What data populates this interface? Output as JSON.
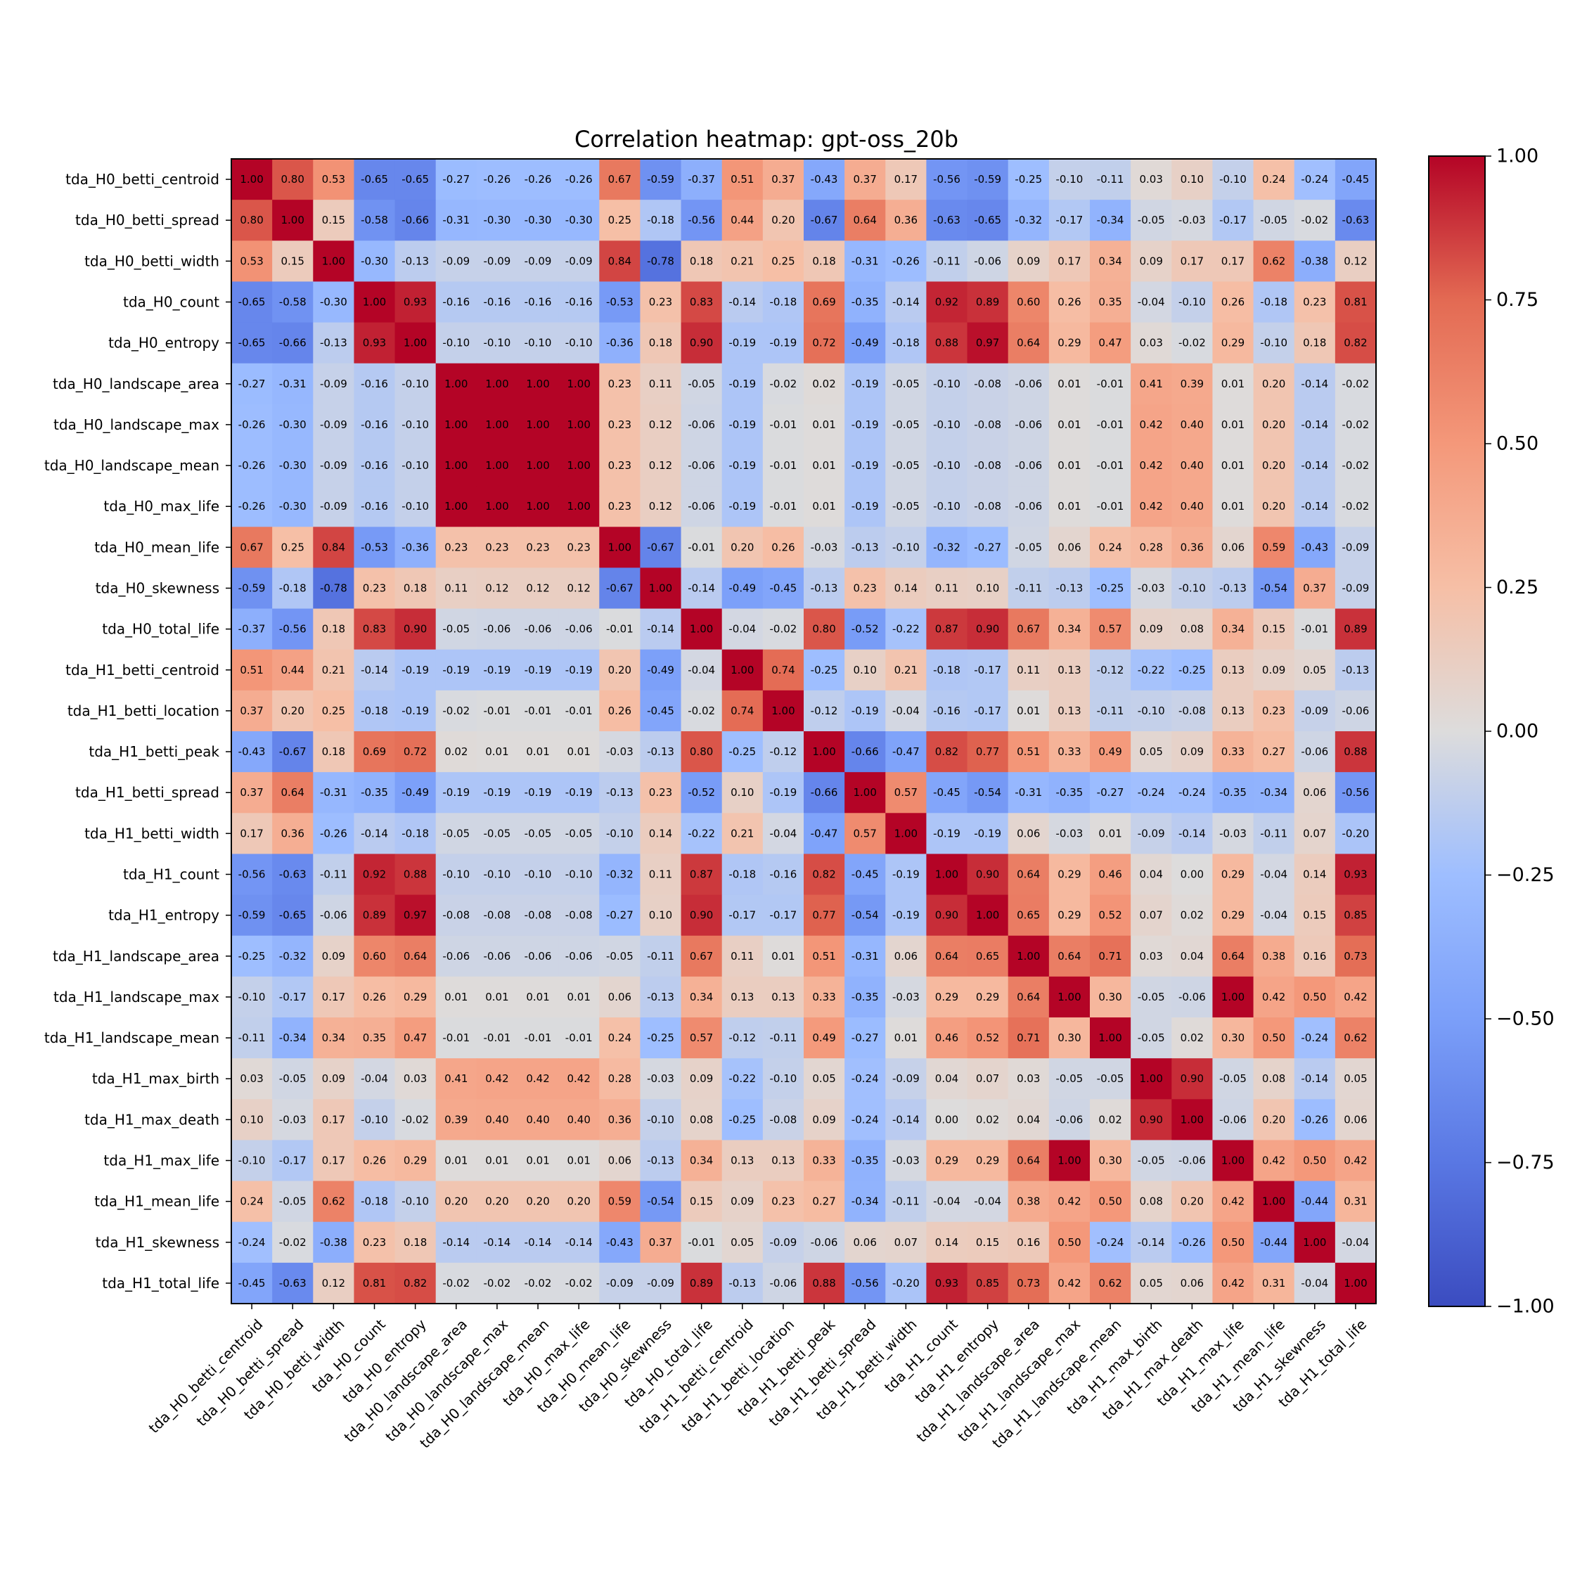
{
  "chart_data": {
    "type": "heatmap",
    "title": "Correlation heatmap: gpt-oss_20b",
    "labels": [
      "tda_H0_betti_centroid",
      "tda_H0_betti_spread",
      "tda_H0_betti_width",
      "tda_H0_count",
      "tda_H0_entropy",
      "tda_H0_landscape_area",
      "tda_H0_landscape_max",
      "tda_H0_landscape_mean",
      "tda_H0_max_life",
      "tda_H0_mean_life",
      "tda_H0_skewness",
      "tda_H0_total_life",
      "tda_H1_betti_centroid",
      "tda_H1_betti_location",
      "tda_H1_betti_peak",
      "tda_H1_betti_spread",
      "tda_H1_betti_width",
      "tda_H1_count",
      "tda_H1_entropy",
      "tda_H1_landscape_area",
      "tda_H1_landscape_max",
      "tda_H1_landscape_mean",
      "tda_H1_max_birth",
      "tda_H1_max_death",
      "tda_H1_max_life",
      "tda_H1_mean_life",
      "tda_H1_skewness",
      "tda_H1_total_life"
    ],
    "matrix": [
      [
        1.0,
        0.8,
        0.53,
        -0.65,
        -0.65,
        -0.27,
        -0.26,
        -0.26,
        -0.26,
        0.67,
        -0.59,
        -0.37,
        0.51,
        0.37,
        -0.43,
        0.37,
        0.17,
        -0.56,
        -0.59,
        -0.25,
        -0.1,
        -0.11,
        0.03,
        0.1,
        -0.1,
        0.24,
        -0.24,
        -0.45
      ],
      [
        0.8,
        1.0,
        0.15,
        -0.58,
        -0.66,
        -0.31,
        -0.3,
        -0.3,
        -0.3,
        0.25,
        -0.18,
        -0.56,
        0.44,
        0.2,
        -0.67,
        0.64,
        0.36,
        -0.63,
        -0.65,
        -0.32,
        -0.17,
        -0.34,
        -0.05,
        -0.03,
        -0.17,
        -0.05,
        -0.02,
        -0.63
      ],
      [
        0.53,
        0.15,
        1.0,
        -0.3,
        -0.13,
        -0.09,
        -0.09,
        -0.09,
        -0.09,
        0.84,
        -0.78,
        0.18,
        0.21,
        0.25,
        0.18,
        -0.31,
        -0.26,
        -0.11,
        -0.06,
        0.09,
        0.17,
        0.34,
        0.09,
        0.17,
        0.17,
        0.62,
        -0.38,
        0.12
      ],
      [
        -0.65,
        -0.58,
        -0.3,
        1.0,
        0.93,
        -0.16,
        -0.16,
        -0.16,
        -0.16,
        -0.53,
        0.23,
        0.83,
        -0.14,
        -0.18,
        0.69,
        -0.35,
        -0.14,
        0.92,
        0.89,
        0.6,
        0.26,
        0.35,
        -0.04,
        -0.1,
        0.26,
        -0.18,
        0.23,
        0.81
      ],
      [
        -0.65,
        -0.66,
        -0.13,
        0.93,
        1.0,
        -0.1,
        -0.1,
        -0.1,
        -0.1,
        -0.36,
        0.18,
        0.9,
        -0.19,
        -0.19,
        0.72,
        -0.49,
        -0.18,
        0.88,
        0.97,
        0.64,
        0.29,
        0.47,
        0.03,
        -0.02,
        0.29,
        -0.1,
        0.18,
        0.82
      ],
      [
        -0.27,
        -0.31,
        -0.09,
        -0.16,
        -0.1,
        1.0,
        1.0,
        1.0,
        1.0,
        0.23,
        0.11,
        -0.05,
        -0.19,
        -0.02,
        0.02,
        -0.19,
        -0.05,
        -0.1,
        -0.08,
        -0.06,
        0.01,
        -0.01,
        0.41,
        0.39,
        0.01,
        0.2,
        -0.14,
        -0.02
      ],
      [
        -0.26,
        -0.3,
        -0.09,
        -0.16,
        -0.1,
        1.0,
        1.0,
        1.0,
        1.0,
        0.23,
        0.12,
        -0.06,
        -0.19,
        -0.01,
        0.01,
        -0.19,
        -0.05,
        -0.1,
        -0.08,
        -0.06,
        0.01,
        -0.01,
        0.42,
        0.4,
        0.01,
        0.2,
        -0.14,
        -0.02
      ],
      [
        -0.26,
        -0.3,
        -0.09,
        -0.16,
        -0.1,
        1.0,
        1.0,
        1.0,
        1.0,
        0.23,
        0.12,
        -0.06,
        -0.19,
        -0.01,
        0.01,
        -0.19,
        -0.05,
        -0.1,
        -0.08,
        -0.06,
        0.01,
        -0.01,
        0.42,
        0.4,
        0.01,
        0.2,
        -0.14,
        -0.02
      ],
      [
        -0.26,
        -0.3,
        -0.09,
        -0.16,
        -0.1,
        1.0,
        1.0,
        1.0,
        1.0,
        0.23,
        0.12,
        -0.06,
        -0.19,
        -0.01,
        0.01,
        -0.19,
        -0.05,
        -0.1,
        -0.08,
        -0.06,
        0.01,
        -0.01,
        0.42,
        0.4,
        0.01,
        0.2,
        -0.14,
        -0.02
      ],
      [
        0.67,
        0.25,
        0.84,
        -0.53,
        -0.36,
        0.23,
        0.23,
        0.23,
        0.23,
        1.0,
        -0.67,
        -0.01,
        0.2,
        0.26,
        -0.03,
        -0.13,
        -0.1,
        -0.32,
        -0.27,
        -0.05,
        0.06,
        0.24,
        0.28,
        0.36,
        0.06,
        0.59,
        -0.43,
        -0.09
      ],
      [
        -0.59,
        -0.18,
        -0.78,
        0.23,
        0.18,
        0.11,
        0.12,
        0.12,
        0.12,
        -0.67,
        1.0,
        -0.14,
        -0.49,
        -0.45,
        -0.13,
        0.23,
        0.14,
        0.11,
        0.1,
        -0.11,
        -0.13,
        -0.25,
        -0.03,
        -0.1,
        -0.13,
        -0.54,
        0.37,
        -0.09
      ],
      [
        -0.37,
        -0.56,
        0.18,
        0.83,
        0.9,
        -0.05,
        -0.06,
        -0.06,
        -0.06,
        -0.01,
        -0.14,
        1.0,
        -0.04,
        -0.02,
        0.8,
        -0.52,
        -0.22,
        0.87,
        0.9,
        0.67,
        0.34,
        0.57,
        0.09,
        0.08,
        0.34,
        0.15,
        -0.01,
        0.89
      ],
      [
        0.51,
        0.44,
        0.21,
        -0.14,
        -0.19,
        -0.19,
        -0.19,
        -0.19,
        -0.19,
        0.2,
        -0.49,
        -0.04,
        1.0,
        0.74,
        -0.25,
        0.1,
        0.21,
        -0.18,
        -0.17,
        0.11,
        0.13,
        -0.12,
        -0.22,
        -0.25,
        0.13,
        0.09,
        0.05,
        -0.13
      ],
      [
        0.37,
        0.2,
        0.25,
        -0.18,
        -0.19,
        -0.02,
        -0.01,
        -0.01,
        -0.01,
        0.26,
        -0.45,
        -0.02,
        0.74,
        1.0,
        -0.12,
        -0.19,
        -0.04,
        -0.16,
        -0.17,
        0.01,
        0.13,
        -0.11,
        -0.1,
        -0.08,
        0.13,
        0.23,
        -0.09,
        -0.06
      ],
      [
        -0.43,
        -0.67,
        0.18,
        0.69,
        0.72,
        0.02,
        0.01,
        0.01,
        0.01,
        -0.03,
        -0.13,
        0.8,
        -0.25,
        -0.12,
        1.0,
        -0.66,
        -0.47,
        0.82,
        0.77,
        0.51,
        0.33,
        0.49,
        0.05,
        0.09,
        0.33,
        0.27,
        -0.06,
        0.88
      ],
      [
        0.37,
        0.64,
        -0.31,
        -0.35,
        -0.49,
        -0.19,
        -0.19,
        -0.19,
        -0.19,
        -0.13,
        0.23,
        -0.52,
        0.1,
        -0.19,
        -0.66,
        1.0,
        0.57,
        -0.45,
        -0.54,
        -0.31,
        -0.35,
        -0.27,
        -0.24,
        -0.24,
        -0.35,
        -0.34,
        0.06,
        -0.56
      ],
      [
        0.17,
        0.36,
        -0.26,
        -0.14,
        -0.18,
        -0.05,
        -0.05,
        -0.05,
        -0.05,
        -0.1,
        0.14,
        -0.22,
        0.21,
        -0.04,
        -0.47,
        0.57,
        1.0,
        -0.19,
        -0.19,
        0.06,
        -0.03,
        0.01,
        -0.09,
        -0.14,
        -0.03,
        -0.11,
        0.07,
        -0.2
      ],
      [
        -0.56,
        -0.63,
        -0.11,
        0.92,
        0.88,
        -0.1,
        -0.1,
        -0.1,
        -0.1,
        -0.32,
        0.11,
        0.87,
        -0.18,
        -0.16,
        0.82,
        -0.45,
        -0.19,
        1.0,
        0.9,
        0.64,
        0.29,
        0.46,
        0.04,
        0.0,
        0.29,
        -0.04,
        0.14,
        0.93
      ],
      [
        -0.59,
        -0.65,
        -0.06,
        0.89,
        0.97,
        -0.08,
        -0.08,
        -0.08,
        -0.08,
        -0.27,
        0.1,
        0.9,
        -0.17,
        -0.17,
        0.77,
        -0.54,
        -0.19,
        0.9,
        1.0,
        0.65,
        0.29,
        0.52,
        0.07,
        0.02,
        0.29,
        -0.04,
        0.15,
        0.85
      ],
      [
        -0.25,
        -0.32,
        0.09,
        0.6,
        0.64,
        -0.06,
        -0.06,
        -0.06,
        -0.06,
        -0.05,
        -0.11,
        0.67,
        0.11,
        0.01,
        0.51,
        -0.31,
        0.06,
        0.64,
        0.65,
        1.0,
        0.64,
        0.71,
        0.03,
        0.04,
        0.64,
        0.38,
        0.16,
        0.73
      ],
      [
        -0.1,
        -0.17,
        0.17,
        0.26,
        0.29,
        0.01,
        0.01,
        0.01,
        0.01,
        0.06,
        -0.13,
        0.34,
        0.13,
        0.13,
        0.33,
        -0.35,
        -0.03,
        0.29,
        0.29,
        0.64,
        1.0,
        0.3,
        -0.05,
        -0.06,
        1.0,
        0.42,
        0.5,
        0.42
      ],
      [
        -0.11,
        -0.34,
        0.34,
        0.35,
        0.47,
        -0.01,
        -0.01,
        -0.01,
        -0.01,
        0.24,
        -0.25,
        0.57,
        -0.12,
        -0.11,
        0.49,
        -0.27,
        0.01,
        0.46,
        0.52,
        0.71,
        0.3,
        1.0,
        -0.05,
        0.02,
        0.3,
        0.5,
        -0.24,
        0.62
      ],
      [
        0.03,
        -0.05,
        0.09,
        -0.04,
        0.03,
        0.41,
        0.42,
        0.42,
        0.42,
        0.28,
        -0.03,
        0.09,
        -0.22,
        -0.1,
        0.05,
        -0.24,
        -0.09,
        0.04,
        0.07,
        0.03,
        -0.05,
        -0.05,
        1.0,
        0.9,
        -0.05,
        0.08,
        -0.14,
        0.05
      ],
      [
        0.1,
        -0.03,
        0.17,
        -0.1,
        -0.02,
        0.39,
        0.4,
        0.4,
        0.4,
        0.36,
        -0.1,
        0.08,
        -0.25,
        -0.08,
        0.09,
        -0.24,
        -0.14,
        0.0,
        0.02,
        0.04,
        -0.06,
        0.02,
        0.9,
        1.0,
        -0.06,
        0.2,
        -0.26,
        0.06
      ],
      [
        -0.1,
        -0.17,
        0.17,
        0.26,
        0.29,
        0.01,
        0.01,
        0.01,
        0.01,
        0.06,
        -0.13,
        0.34,
        0.13,
        0.13,
        0.33,
        -0.35,
        -0.03,
        0.29,
        0.29,
        0.64,
        1.0,
        0.3,
        -0.05,
        -0.06,
        1.0,
        0.42,
        0.5,
        0.42
      ],
      [
        0.24,
        -0.05,
        0.62,
        -0.18,
        -0.1,
        0.2,
        0.2,
        0.2,
        0.2,
        0.59,
        -0.54,
        0.15,
        0.09,
        0.23,
        0.27,
        -0.34,
        -0.11,
        -0.04,
        -0.04,
        0.38,
        0.42,
        0.5,
        0.08,
        0.2,
        0.42,
        1.0,
        -0.44,
        0.31
      ],
      [
        -0.24,
        -0.02,
        -0.38,
        0.23,
        0.18,
        -0.14,
        -0.14,
        -0.14,
        -0.14,
        -0.43,
        0.37,
        -0.01,
        0.05,
        -0.09,
        -0.06,
        0.06,
        0.07,
        0.14,
        0.15,
        0.16,
        0.5,
        -0.24,
        -0.14,
        -0.26,
        0.5,
        -0.44,
        1.0,
        -0.04
      ],
      [
        -0.45,
        -0.63,
        0.12,
        0.81,
        0.82,
        -0.02,
        -0.02,
        -0.02,
        -0.02,
        -0.09,
        -0.09,
        0.89,
        -0.13,
        -0.06,
        0.88,
        -0.56,
        -0.2,
        0.93,
        0.85,
        0.73,
        0.42,
        0.62,
        0.05,
        0.06,
        0.42,
        0.31,
        -0.04,
        1.0
      ]
    ],
    "colormap": "coolwarm",
    "vmin": -1.0,
    "vmax": 1.0,
    "colorbar_ticks": [
      "1.00",
      "0.75",
      "0.50",
      "0.25",
      "0.00",
      "−0.25",
      "−0.50",
      "−0.75",
      "−1.00"
    ],
    "colorbar_tick_values": [
      1.0,
      0.75,
      0.5,
      0.25,
      0.0,
      -0.25,
      -0.5,
      -0.75,
      -1.0
    ]
  }
}
